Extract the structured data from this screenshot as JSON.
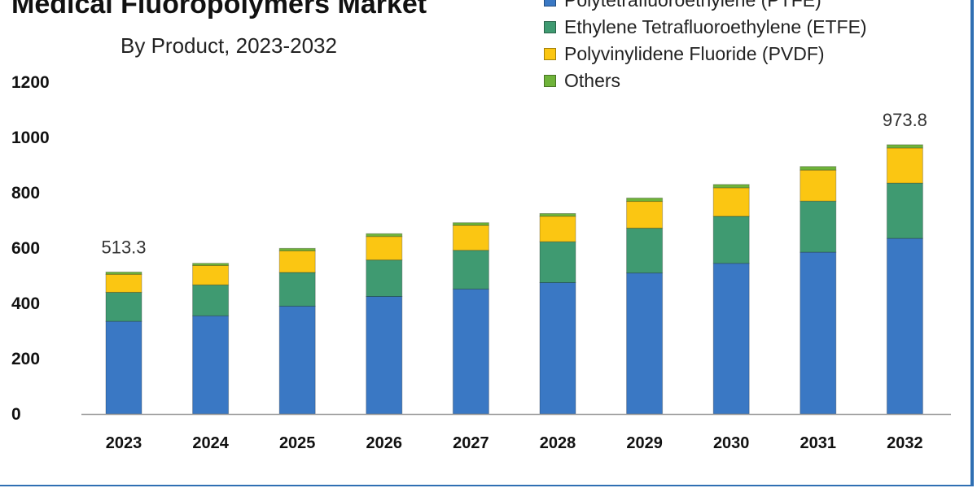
{
  "chart_data": {
    "type": "bar",
    "stacked": true,
    "title": "Medical Fluoropolymers Market",
    "subtitle": "By Product, 2023-2032",
    "xlabel": "",
    "ylabel": "",
    "ylim": [
      0,
      1200
    ],
    "yticks": [
      "0",
      "200",
      "400",
      "600",
      "800",
      "1000",
      "1200"
    ],
    "categories": [
      "2023",
      "2024",
      "2025",
      "2026",
      "2027",
      "2028",
      "2029",
      "2030",
      "2031",
      "2032"
    ],
    "series": [
      {
        "name": "Polytetrafluoroethylene (PTFE)",
        "color": "#3a78c4",
        "values": [
          335,
          355,
          390,
          425,
          452,
          475,
          510,
          545,
          585,
          635
        ]
      },
      {
        "name": "Ethylene Tetrafluoroethylene (ETFE)",
        "color": "#3f9a71",
        "values": [
          105,
          112,
          122,
          132,
          140,
          148,
          162,
          170,
          185,
          200
        ]
      },
      {
        "name": "Polyvinylidene Fluoride (PVDF)",
        "color": "#fbc612",
        "values": [
          65,
          70,
          78,
          85,
          90,
          92,
          97,
          103,
          112,
          127
        ]
      },
      {
        "name": "Others",
        "color": "#6fb33a",
        "values": [
          8.3,
          8,
          9,
          10,
          10,
          10,
          12,
          12,
          13,
          11.8
        ]
      }
    ],
    "data_labels": [
      {
        "category": "2023",
        "text": "513.3"
      },
      {
        "category": "2032",
        "text": "973.8"
      }
    ],
    "legend_position": "top-right",
    "grid": false
  }
}
